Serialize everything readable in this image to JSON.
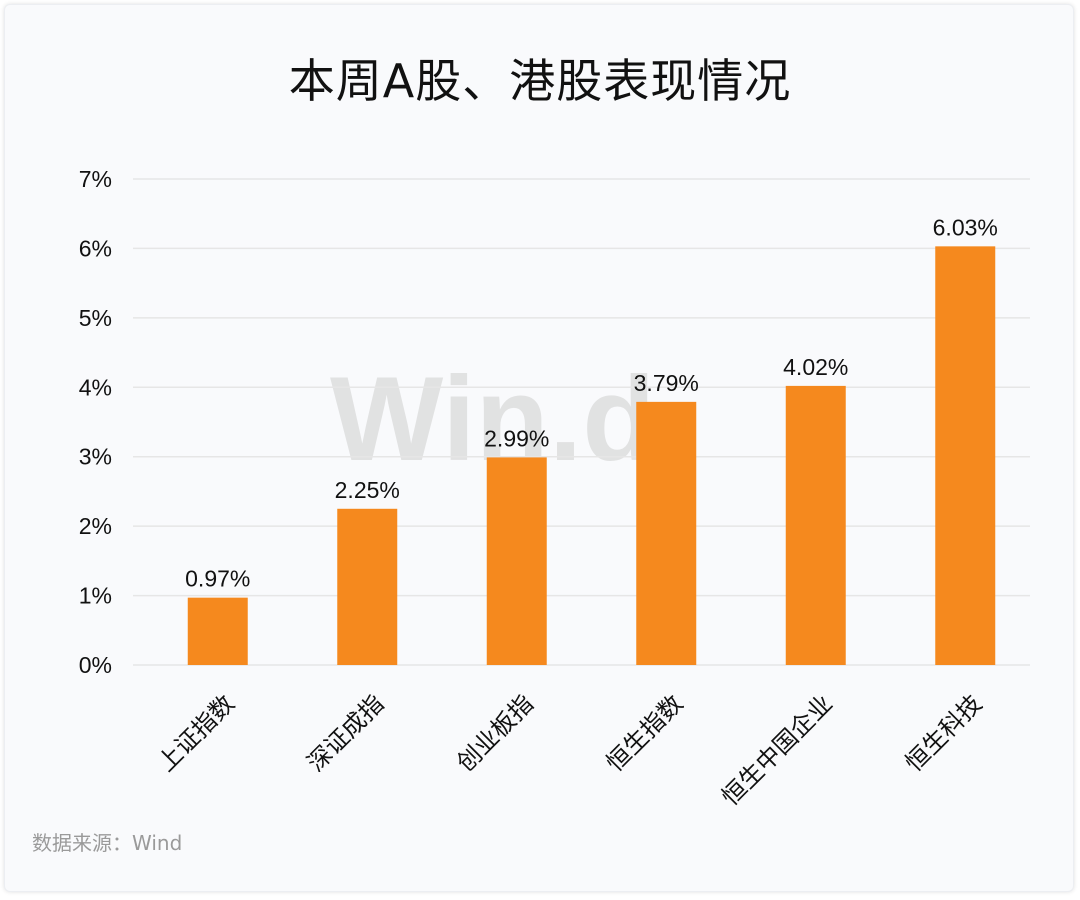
{
  "title": "本周A股、港股表现情况",
  "source": "数据来源：Wind",
  "watermark": "Win.d",
  "colors": {
    "bar": "#f5891e",
    "grid": "#e6e6e6",
    "text": "#111111"
  },
  "chart_data": {
    "type": "bar",
    "title": "本周A股、港股表现情况",
    "xlabel": "",
    "ylabel": "",
    "categories": [
      "上证指数",
      "深证成指",
      "创业板指",
      "恒生指数",
      "恒生中国企业",
      "恒生科技"
    ],
    "values": [
      0.97,
      2.25,
      2.99,
      3.79,
      4.02,
      6.03
    ],
    "data_labels": [
      "0.97%",
      "2.25%",
      "2.99%",
      "3.79%",
      "4.02%",
      "6.03%"
    ],
    "ylim": [
      0,
      7
    ],
    "y_ticks": [
      "0%",
      "1%",
      "2%",
      "3%",
      "4%",
      "5%",
      "6%",
      "7%"
    ],
    "grid": true,
    "legend": "none"
  }
}
